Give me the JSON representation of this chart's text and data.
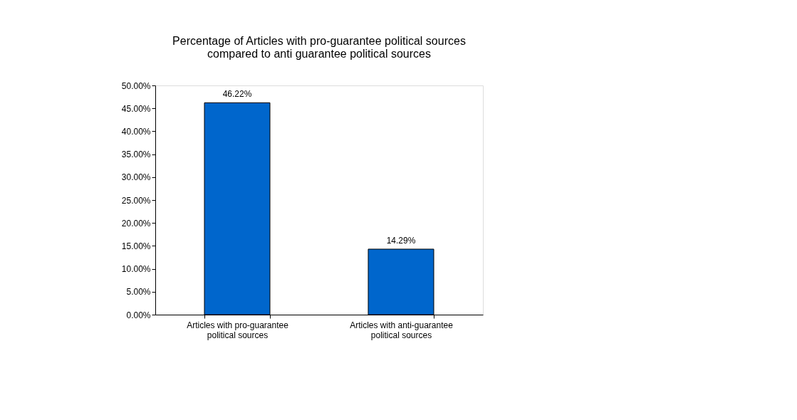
{
  "chart_data": {
    "type": "bar",
    "title": "Percentage of Articles with pro-guarantee political sources\ncompared to anti guarantee political sources",
    "categories": [
      "Articles with pro-guarantee\npolitical sources",
      "Articles with anti-guarantee\npolitical sources"
    ],
    "values": [
      46.22,
      14.29
    ],
    "value_labels": [
      "46.22%",
      "14.29%"
    ],
    "color": "#0066cc",
    "ylim": [
      0,
      50
    ],
    "yticks": [
      {
        "value": 0,
        "label": "0.00%"
      },
      {
        "value": 5,
        "label": "5.00%"
      },
      {
        "value": 10,
        "label": "10.00%"
      },
      {
        "value": 15,
        "label": "15.00%"
      },
      {
        "value": 20,
        "label": "20.00%"
      },
      {
        "value": 25,
        "label": "25.00%"
      },
      {
        "value": 30,
        "label": "30.00%"
      },
      {
        "value": 35,
        "label": "35.00%"
      },
      {
        "value": 40,
        "label": "40.00%"
      },
      {
        "value": 45,
        "label": "45.00%"
      },
      {
        "value": 50,
        "label": "50.00%"
      }
    ],
    "grid": false
  }
}
